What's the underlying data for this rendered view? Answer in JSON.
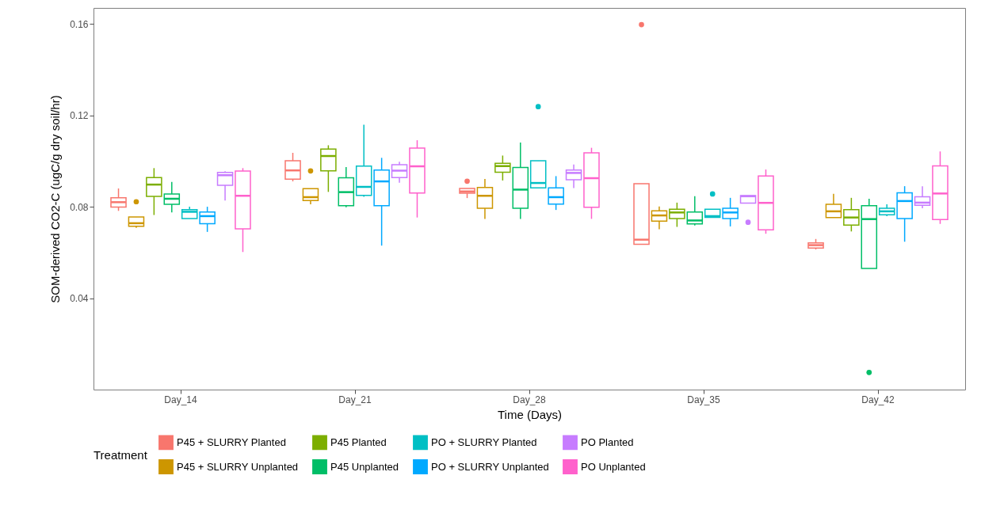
{
  "chart_data": {
    "type": "box",
    "xlabel": "Time (Days)",
    "ylabel": "SOM-derived CO2-C (ugC/g dry soil/hr)",
    "legend_title": "Treatment",
    "legend": "bottom",
    "categories": [
      "Day_14",
      "Day_21",
      "Day_28",
      "Day_35",
      "Day_42"
    ],
    "ylim": [
      0,
      0.167
    ],
    "yticks": [
      0.04,
      0.08,
      0.12,
      0.16
    ],
    "series": [
      {
        "name": "P45 + SLURRY Planted",
        "color": "#f8766d",
        "boxes": [
          {
            "low": 0.0782,
            "q1": 0.0799,
            "median": 0.082,
            "q3": 0.0839,
            "high": 0.088
          },
          {
            "low": 0.0911,
            "q1": 0.0921,
            "median": 0.0959,
            "q3": 0.1001,
            "high": 0.1036
          },
          {
            "low": 0.0838,
            "q1": 0.0859,
            "median": 0.0867,
            "q3": 0.088,
            "high": 0.088,
            "outliers": [
              0.0912
            ]
          },
          {
            "low": 0.0636,
            "q1": 0.0636,
            "median": 0.0656,
            "q3": 0.0901,
            "high": 0.0901,
            "outliers": [
              0.1597
            ]
          },
          {
            "low": 0.0613,
            "q1": 0.0619,
            "median": 0.0632,
            "q3": 0.0642,
            "high": 0.0659
          }
        ]
      },
      {
        "name": "P45 + SLURRY Unplanted",
        "color": "#cd9600",
        "boxes": [
          {
            "low": 0.0708,
            "q1": 0.0715,
            "median": 0.0728,
            "q3": 0.0755,
            "high": 0.0755,
            "outliers": [
              0.0822
            ]
          },
          {
            "low": 0.0811,
            "q1": 0.0827,
            "median": 0.0842,
            "q3": 0.0879,
            "high": 0.0879,
            "outliers": [
              0.0957
            ]
          },
          {
            "low": 0.0747,
            "q1": 0.0793,
            "median": 0.0848,
            "q3": 0.0884,
            "high": 0.0922
          },
          {
            "low": 0.0702,
            "q1": 0.0737,
            "median": 0.0762,
            "q3": 0.0782,
            "high": 0.0801
          },
          {
            "low": 0.0753,
            "q1": 0.0753,
            "median": 0.078,
            "q3": 0.0811,
            "high": 0.0857
          }
        ]
      },
      {
        "name": "P45 Planted",
        "color": "#7cae00",
        "boxes": [
          {
            "low": 0.0764,
            "q1": 0.0845,
            "median": 0.0897,
            "q3": 0.0928,
            "high": 0.0969
          },
          {
            "low": 0.0865,
            "q1": 0.0957,
            "median": 0.1022,
            "q3": 0.1052,
            "high": 0.1069
          },
          {
            "low": 0.0915,
            "q1": 0.0951,
            "median": 0.0978,
            "q3": 0.099,
            "high": 0.1024
          },
          {
            "low": 0.0712,
            "q1": 0.0748,
            "median": 0.0775,
            "q3": 0.0789,
            "high": 0.0818
          },
          {
            "low": 0.0692,
            "q1": 0.072,
            "median": 0.0753,
            "q3": 0.0787,
            "high": 0.0839
          }
        ]
      },
      {
        "name": "P45 Unplanted",
        "color": "#00be67",
        "boxes": [
          {
            "low": 0.0775,
            "q1": 0.0811,
            "median": 0.0835,
            "q3": 0.0856,
            "high": 0.0909
          },
          {
            "low": 0.0798,
            "q1": 0.0805,
            "median": 0.0864,
            "q3": 0.0927,
            "high": 0.0974
          },
          {
            "low": 0.0747,
            "q1": 0.0793,
            "median": 0.0875,
            "q3": 0.0972,
            "high": 0.1081
          },
          {
            "low": 0.0718,
            "q1": 0.0725,
            "median": 0.074,
            "q3": 0.0777,
            "high": 0.0846
          },
          {
            "low": 0.053,
            "q1": 0.053,
            "median": 0.0746,
            "q3": 0.0805,
            "high": 0.0835,
            "outliers": [
              0.0075
            ]
          }
        ]
      },
      {
        "name": "PO + SLURRY Planted",
        "color": "#00bfc4",
        "boxes": [
          {
            "low": 0.0748,
            "q1": 0.0748,
            "median": 0.0778,
            "q3": 0.0787,
            "high": 0.08
          },
          {
            "low": 0.0844,
            "q1": 0.085,
            "median": 0.0887,
            "q3": 0.0978,
            "high": 0.1159
          },
          {
            "low": 0.0883,
            "q1": 0.0883,
            "median": 0.0904,
            "q3": 0.1001,
            "high": 0.1001,
            "outliers": [
              0.1238
            ]
          },
          {
            "low": 0.0754,
            "q1": 0.0754,
            "median": 0.0759,
            "q3": 0.0789,
            "high": 0.0789,
            "outliers": [
              0.0856
            ]
          },
          {
            "low": 0.0759,
            "q1": 0.0765,
            "median": 0.078,
            "q3": 0.0793,
            "high": 0.0811
          }
        ]
      },
      {
        "name": "PO + SLURRY Unplanted",
        "color": "#00a9ff",
        "boxes": [
          {
            "low": 0.069,
            "q1": 0.0726,
            "median": 0.0759,
            "q3": 0.0777,
            "high": 0.08
          },
          {
            "low": 0.063,
            "q1": 0.0805,
            "median": 0.0911,
            "q3": 0.0961,
            "high": 0.1014
          },
          {
            "low": 0.0786,
            "q1": 0.0812,
            "median": 0.0842,
            "q3": 0.0883,
            "high": 0.0934
          },
          {
            "low": 0.0714,
            "q1": 0.0748,
            "median": 0.0775,
            "q3": 0.0793,
            "high": 0.0839
          },
          {
            "low": 0.0647,
            "q1": 0.0748,
            "median": 0.0825,
            "q3": 0.0861,
            "high": 0.089
          }
        ]
      },
      {
        "name": "PO Planted",
        "color": "#c77cff",
        "boxes": [
          {
            "low": 0.0827,
            "q1": 0.0894,
            "median": 0.0938,
            "q3": 0.095,
            "high": 0.0955
          },
          {
            "low": 0.0905,
            "q1": 0.0928,
            "median": 0.0958,
            "q3": 0.0984,
            "high": 0.0997
          },
          {
            "low": 0.0882,
            "q1": 0.0918,
            "median": 0.0948,
            "q3": 0.0961,
            "high": 0.0985
          },
          {
            "low": 0.0816,
            "q1": 0.0816,
            "median": 0.0846,
            "q3": 0.0849,
            "high": 0.0849,
            "outliers": [
              0.0732
            ]
          },
          {
            "low": 0.0793,
            "q1": 0.0806,
            "median": 0.0818,
            "q3": 0.0844,
            "high": 0.089
          }
        ]
      },
      {
        "name": "PO Unplanted",
        "color": "#ff61cc",
        "boxes": [
          {
            "low": 0.0602,
            "q1": 0.0703,
            "median": 0.0848,
            "q3": 0.0956,
            "high": 0.0969
          },
          {
            "low": 0.0753,
            "q1": 0.086,
            "median": 0.0977,
            "q3": 0.1057,
            "high": 0.1091
          },
          {
            "low": 0.0747,
            "q1": 0.0798,
            "median": 0.0925,
            "q3": 0.1036,
            "high": 0.1058
          },
          {
            "low": 0.0682,
            "q1": 0.0699,
            "median": 0.0817,
            "q3": 0.0935,
            "high": 0.0963
          },
          {
            "low": 0.0725,
            "q1": 0.0744,
            "median": 0.0858,
            "q3": 0.0979,
            "high": 0.1042
          }
        ]
      }
    ]
  }
}
